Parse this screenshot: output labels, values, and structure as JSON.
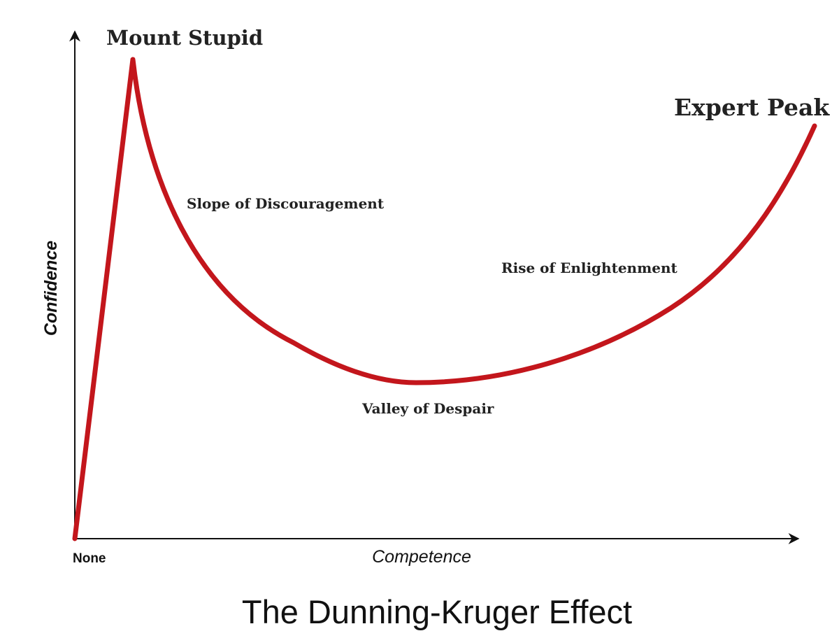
{
  "title": "The Dunning-Kruger Effect",
  "axes": {
    "y_label": "Confidence",
    "x_label": "Competence",
    "x_origin_label": "None"
  },
  "annotations": {
    "peak": "Mount Stupid",
    "slope": "Slope of Discouragement",
    "valley": "Valley of Despair",
    "rise": "Rise of Enlightenment",
    "expert": "Expert Peak"
  }
}
